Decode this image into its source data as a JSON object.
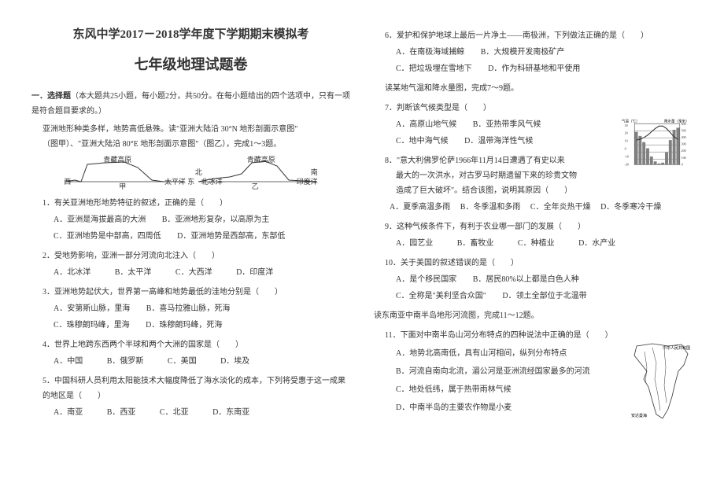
{
  "header": {
    "line1": "东风中学2017－2018学年度下学期期末模拟考",
    "line2": "七年级地理试题卷"
  },
  "section": {
    "label": "一．选择题",
    "desc": "（本大题共25小题，每小题2分，共50分。在每小题给出的四个选项中，只有一项是符合题目要求的。）",
    "intro1": "亚洲地形种类多样，地势高低悬殊。读\"亚洲大陆沿 30°N 地形剖面示意图\"",
    "intro2": "（图甲）、\"亚洲大陆沿 80°E 地形剖面示意图\"（图乙），完成1～3题。"
  },
  "figs": {
    "jia_left": "西",
    "jia_mid": "青藏高原",
    "jia_right": "太平洋 东",
    "jia_cap": "甲",
    "yi_left": "北冰洋",
    "yi_mid": "青藏高原",
    "yi_right": "印度洋",
    "yi_left2": "北",
    "yi_right2": "南",
    "yi_cap": "乙"
  },
  "q1": {
    "stem": "1．有关亚洲地形地势特征的叙述，正确的是（　　）",
    "a": "A．亚洲是海拔最高的大洲",
    "b": "B．亚洲地形复杂，以高原为主",
    "c": "C．亚洲地势是中部高，四周低",
    "d": "D．亚洲地势是西部高，东部低"
  },
  "q2": {
    "stem": "2．受地势影响，亚洲一部分河流向北注入（　　）",
    "a": "A．北冰洋",
    "b": "B．太平洋",
    "c": "C．大西洋",
    "d": "D．印度洋"
  },
  "q3": {
    "stem": "3．亚洲地势起伏大，世界第一高峰和地势最低的洼地分别是（　　）",
    "a": "A．安第斯山脉，里海",
    "b": "B．喜马拉雅山脉，死海",
    "c": "C．珠穆朗玛峰，里海",
    "d": "D．珠穆朗玛峰，死海"
  },
  "q4": {
    "stem": "4．世界上地跨东西两个半球和两个大洲的国家是（　　）",
    "a": "A．中国",
    "b": "B．俄罗斯",
    "c": "C．美国",
    "d": "D．埃及"
  },
  "q5": {
    "stem": "5．中国科研人员利用太阳能技术大幅度降低了海水淡化的成本，下列将受惠于这一成果的地区是（　　）",
    "a": "A．南亚",
    "b": "B．西亚",
    "c": "C．北亚",
    "d": "D．东南亚"
  },
  "q6": {
    "stem": "6．爱护和保护地球上最后一片净土——南极洲，下列做法正确的是（　　）",
    "a": "A．在南极海域捕鲸",
    "b": "B．大规模开发南极矿产",
    "c": "C．把垃圾埋在雪地下",
    "d": "D．作为科研基地和平使用"
  },
  "clim_intro": "读某地气温和降水量图，完成7～9题。",
  "q7": {
    "stem": "7．判断该气候类型是（　　）",
    "a": "A．高原山地气候",
    "b": "B．亚热带季风气候",
    "c": "C．地中海气候",
    "d": "D．温带海洋性气候"
  },
  "q8": {
    "stem": "8．\"意大利佛罗伦萨1966年11月14日遭遇了有史以来",
    "stem2": "最大的一次洪水，对古罗马时期遗留下来的珍贵文物",
    "stem3": "造成了巨大破坏\"。结合该图，说明其原因（　　）",
    "a": "A．夏季高温多雨",
    "b": "B．冬季温和多雨",
    "c": "C．全年炎热干燥",
    "d": "D．冬季寒冷干燥"
  },
  "q9": {
    "stem": "9．这种气候条件下，有利于农业哪一部门的发展（　　）",
    "a": "A．园艺业",
    "b": "B．畜牧业",
    "c": "C．种植业",
    "d": "D．水产业"
  },
  "q10": {
    "stem": "10．关于美国的叙述错误的是（　　）",
    "a": "A．是个移民国家",
    "b": "B．居民80%以上都是白色人种",
    "c": "C．全称是\"美利坚合众国\"",
    "d": "D．领土全部位于北温带"
  },
  "map_intro": "读东南亚中南半岛地形河流图，完成11～12题。",
  "q11": {
    "stem": "11．下面对中南半岛山河分布特点的四种说法中正确的是（　　）",
    "a": "A．地势北高南低，具有山河相间，纵列分布特点",
    "b": "B．河流自南向北流，湄公河是亚洲流经国家最多的河流",
    "c": "C．地处低纬，属于热带雨林气候",
    "d": "D．中南半岛的主要农作物是小麦"
  },
  "climate_chart": {
    "temp_color": "#333333",
    "precip_color": "#808080",
    "bg": "#ffffff",
    "border": "#333333",
    "axis_left_label": "气温（℃）",
    "axis_right_label": "降水量（毫米）",
    "left_ticks": [
      "30",
      "20",
      "10",
      "0",
      "-10",
      "-20"
    ],
    "right_ticks": [
      "600",
      "500",
      "400",
      "300",
      "200",
      "100",
      "0"
    ],
    "precip_values": [
      80,
      70,
      55,
      40,
      20,
      8,
      3,
      5,
      30,
      60,
      85,
      90
    ],
    "temp_values": [
      10,
      11,
      13,
      16,
      20,
      24,
      27,
      27,
      24,
      19,
      14,
      11
    ]
  },
  "map": {
    "border": "#333333",
    "fill": "#ffffff",
    "labels": [
      "中华人民共和国",
      "印度洋",
      "安达曼海"
    ]
  }
}
